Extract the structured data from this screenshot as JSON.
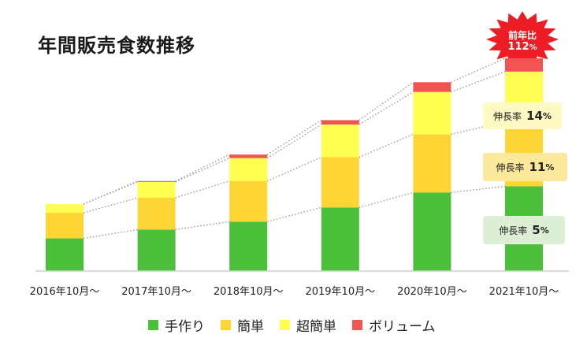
{
  "title": "年間販売食数推移",
  "badge": {
    "line1": "前年比",
    "value": "112",
    "unit": "%"
  },
  "growth_labels": [
    {
      "label": "伸長率",
      "value": "14",
      "unit": "%"
    },
    {
      "label": "伸長率",
      "value": "11",
      "unit": "%"
    },
    {
      "label": "伸長率",
      "value": "5",
      "unit": "%"
    }
  ],
  "colors": {
    "手作り": "#4cbf3b",
    "簡単": "#fdd535",
    "超簡単": "#ffff52",
    "ボリューム": "#f25353"
  },
  "chart_data": {
    "type": "bar",
    "stacked": true,
    "title": "年間販売食数推移",
    "categories": [
      "2016年10月～",
      "2017年10月～",
      "2018年10月～",
      "2019年10月～",
      "2020年10月～",
      "2021年10月～"
    ],
    "series": [
      {
        "name": "手作り",
        "values": [
          37,
          47,
          56,
          72,
          89,
          96
        ]
      },
      {
        "name": "簡単",
        "values": [
          29,
          36,
          46,
          57,
          66,
          73
        ]
      },
      {
        "name": "超簡単",
        "values": [
          10,
          18,
          26,
          37,
          48,
          57
        ]
      },
      {
        "name": "ボリューム",
        "values": [
          0,
          1,
          4,
          5,
          11,
          15
        ]
      }
    ],
    "ylim": [
      0,
      250
    ],
    "xlabel": "",
    "ylabel": "",
    "legend_position": "bottom"
  }
}
